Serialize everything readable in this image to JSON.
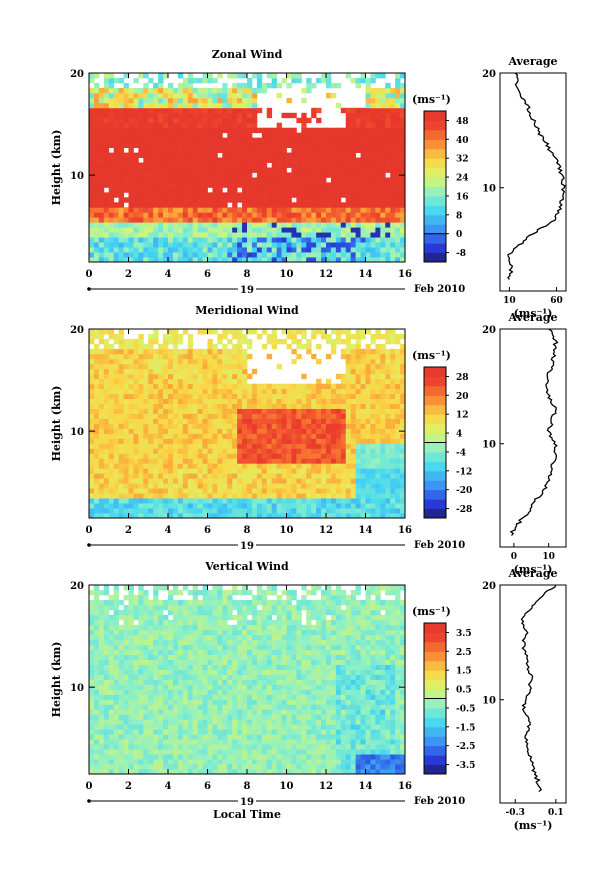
{
  "chart_data": [
    {
      "type": "heatmap",
      "title": "Zonal Wind",
      "ylabel": "Height (km)",
      "unit_label": "(ms⁻¹)",
      "x_ticks": [
        "0",
        "2",
        "4",
        "6",
        "8",
        "10",
        "12",
        "14",
        "16"
      ],
      "y_ticks": [
        "20",
        "10"
      ],
      "xlim": [
        0,
        16
      ],
      "ylim": [
        1.5,
        20
      ],
      "date_label": "19",
      "date_suffix": "Feb 2010",
      "colorbar_ticks": [
        "48",
        "40",
        "32",
        "24",
        "16",
        "8",
        "0",
        "-8"
      ],
      "colorbar_range": [
        -12,
        52
      ],
      "profile": {
        "title": "Average",
        "x_ticks": [
          "10",
          "60"
        ],
        "xlim": [
          0,
          70
        ],
        "xlabel": "(ms⁻¹)",
        "y_ticks": [
          "20",
          "10"
        ],
        "heights": [
          2,
          3,
          4,
          5,
          6,
          7,
          8,
          9,
          10,
          11,
          12,
          13,
          14,
          15,
          16,
          17,
          18,
          19,
          20
        ],
        "values": [
          10,
          12,
          8,
          20,
          35,
          55,
          63,
          66,
          68,
          66,
          62,
          55,
          48,
          40,
          35,
          30,
          22,
          18,
          16
        ]
      }
    },
    {
      "type": "heatmap",
      "title": "Meridional Wind",
      "ylabel": "Height (km)",
      "unit_label": "(ms⁻¹)",
      "x_ticks": [
        "0",
        "2",
        "4",
        "6",
        "8",
        "10",
        "12",
        "14",
        "16"
      ],
      "y_ticks": [
        "20",
        "10"
      ],
      "xlim": [
        0,
        16
      ],
      "ylim": [
        1.5,
        20
      ],
      "date_label": "19",
      "date_suffix": "Feb 2010",
      "colorbar_ticks": [
        "28",
        "20",
        "12",
        "4",
        "-4",
        "-12",
        "-20",
        "-28"
      ],
      "colorbar_range": [
        -32,
        32
      ],
      "profile": {
        "title": "Average",
        "x_ticks": [
          "0",
          "10"
        ],
        "xlim": [
          -4,
          15
        ],
        "xlabel": "(ms⁻¹)",
        "y_ticks": [
          "20",
          "10"
        ],
        "heights": [
          2,
          3,
          4,
          5,
          6,
          7,
          8,
          9,
          10,
          11,
          12,
          13,
          14,
          15,
          16,
          17,
          18,
          19,
          20
        ],
        "values": [
          -1,
          1,
          4,
          6,
          9,
          10,
          11,
          12,
          12,
          10,
          11,
          12,
          10,
          9,
          10,
          11,
          12,
          12,
          10
        ]
      }
    },
    {
      "type": "heatmap",
      "title": "Vertical Wind",
      "ylabel": "Height (km)",
      "xlabel": "Local Time",
      "unit_label": "(ms⁻¹)",
      "x_ticks": [
        "0",
        "2",
        "4",
        "6",
        "8",
        "10",
        "12",
        "14",
        "16"
      ],
      "y_ticks": [
        "20",
        "10"
      ],
      "xlim": [
        0,
        16
      ],
      "ylim": [
        1.5,
        20
      ],
      "date_label": "19",
      "date_suffix": "Feb 2010",
      "colorbar_ticks": [
        "3.5",
        "2.5",
        "1.5",
        "0.5",
        "-0.5",
        "-1.5",
        "-2.5",
        "-3.5"
      ],
      "colorbar_range": [
        -4,
        4
      ],
      "profile": {
        "title": "Average",
        "x_ticks": [
          "-0.3",
          "0.1"
        ],
        "xlim": [
          -0.45,
          0.2
        ],
        "xlabel": "(ms⁻¹)",
        "y_ticks": [
          "20",
          "10"
        ],
        "heights": [
          2,
          3,
          4,
          5,
          6,
          7,
          8,
          9,
          10,
          11,
          12,
          13,
          14,
          15,
          16,
          17,
          18,
          19,
          20
        ],
        "values": [
          -0.05,
          -0.08,
          -0.12,
          -0.15,
          -0.18,
          -0.2,
          -0.15,
          -0.22,
          -0.2,
          -0.16,
          -0.14,
          -0.18,
          -0.2,
          -0.22,
          -0.18,
          -0.25,
          -0.15,
          -0.05,
          0.1
        ]
      }
    }
  ]
}
